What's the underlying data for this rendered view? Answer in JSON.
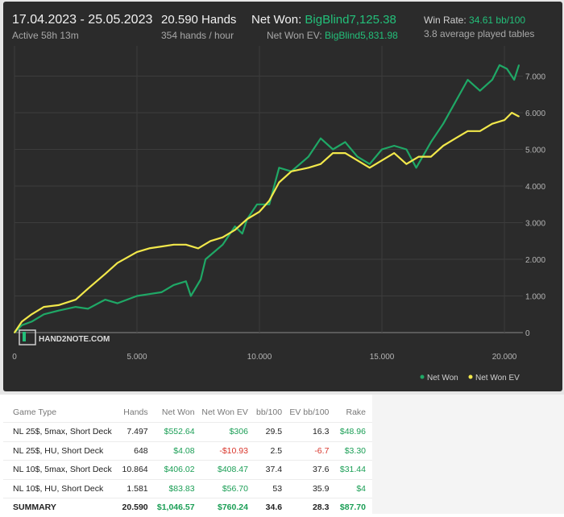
{
  "header": {
    "date_range": "17.04.2023 - 25.05.2023",
    "active": "Active 58h 13m",
    "hands": "20.590 Hands",
    "hands_per_hour": "354 hands / hour",
    "net_won_label": "Net Won:",
    "net_won_value": "BigBlind7,125.38",
    "net_won_ev_label": "Net Won  EV:",
    "net_won_ev_value": "BigBlind5,831.98",
    "win_rate_label": "Win Rate:",
    "win_rate_value": "34.61 bb/100",
    "avg_tables": "3.8 average played tables"
  },
  "colors": {
    "net_won": "#1fa866",
    "net_won_ev": "#f2e84b",
    "panel_bg": "#2b2b2b"
  },
  "watermark": "HAND2NOTE.COM",
  "chart_data": {
    "type": "line",
    "x_ticks": [
      "0",
      "5.000",
      "10.000",
      "15.000",
      "20.000"
    ],
    "y_ticks": [
      "0",
      "1.000",
      "2.000",
      "3.000",
      "4.000",
      "5.000",
      "6.000",
      "7.000"
    ],
    "xlim": [
      0,
      20590
    ],
    "ylim": [
      -200,
      7600
    ],
    "legend": "bottom-right",
    "series": [
      {
        "name": "Net Won",
        "x": [
          0,
          300,
          700,
          1200,
          1800,
          2500,
          3000,
          3700,
          4200,
          5000,
          5500,
          6000,
          6500,
          7000,
          7200,
          7600,
          7800,
          8500,
          9000,
          9300,
          9500,
          9900,
          10400,
          10800,
          11300,
          12000,
          12500,
          13000,
          13500,
          14000,
          14500,
          15000,
          15500,
          16000,
          16400,
          17000,
          17500,
          18000,
          18500,
          19000,
          19500,
          19800,
          20100,
          20400,
          20590
        ],
        "y": [
          0,
          200,
          300,
          500,
          600,
          700,
          650,
          900,
          800,
          1000,
          1050,
          1100,
          1300,
          1400,
          1000,
          1450,
          2000,
          2400,
          2900,
          2700,
          3100,
          3500,
          3500,
          4500,
          4400,
          4800,
          5300,
          5000,
          5200,
          4800,
          4600,
          5000,
          5100,
          5000,
          4500,
          5200,
          5700,
          6300,
          6900,
          6600,
          6900,
          7300,
          7200,
          6900,
          7300
        ]
      },
      {
        "name": "Net Won  EV",
        "x": [
          0,
          300,
          700,
          1200,
          1800,
          2500,
          3000,
          3700,
          4200,
          5000,
          5500,
          6000,
          6500,
          7000,
          7500,
          8000,
          8500,
          9000,
          9500,
          10000,
          10400,
          10800,
          11300,
          12000,
          12500,
          13000,
          13500,
          14000,
          14500,
          15000,
          15500,
          16000,
          16500,
          17000,
          17500,
          18000,
          18500,
          19000,
          19500,
          20000,
          20300,
          20590
        ],
        "y": [
          0,
          300,
          500,
          700,
          750,
          900,
          1200,
          1600,
          1900,
          2200,
          2300,
          2350,
          2400,
          2400,
          2300,
          2500,
          2600,
          2800,
          3100,
          3300,
          3600,
          4100,
          4400,
          4500,
          4600,
          4900,
          4900,
          4700,
          4500,
          4700,
          4900,
          4600,
          4800,
          4800,
          5100,
          5300,
          5500,
          5500,
          5700,
          5800,
          6000,
          5900
        ]
      }
    ]
  },
  "table": {
    "headers": [
      "Game Type",
      "Hands",
      "Net Won",
      "Net Won  EV",
      "bb/100",
      "EV bb/100",
      "Rake"
    ],
    "rows": [
      [
        "NL 25$, 5max, Short Deck",
        "7.497",
        "$552.64",
        "$306",
        "29.5",
        "16.3",
        "$48.96"
      ],
      [
        "NL 25$, HU, Short Deck",
        "648",
        "$4.08",
        "-$10.93",
        "2.5",
        "-6.7",
        "$3.30"
      ],
      [
        "NL 10$, 5max, Short Deck",
        "10.864",
        "$406.02",
        "$408.47",
        "37.4",
        "37.6",
        "$31.44"
      ],
      [
        "NL 10$, HU, Short Deck",
        "1.581",
        "$83.83",
        "$56.70",
        "53",
        "35.9",
        "$4"
      ]
    ],
    "summary": [
      "SUMMARY",
      "20.590",
      "$1,046.57",
      "$760.24",
      "34.6",
      "28.3",
      "$87.70"
    ]
  }
}
